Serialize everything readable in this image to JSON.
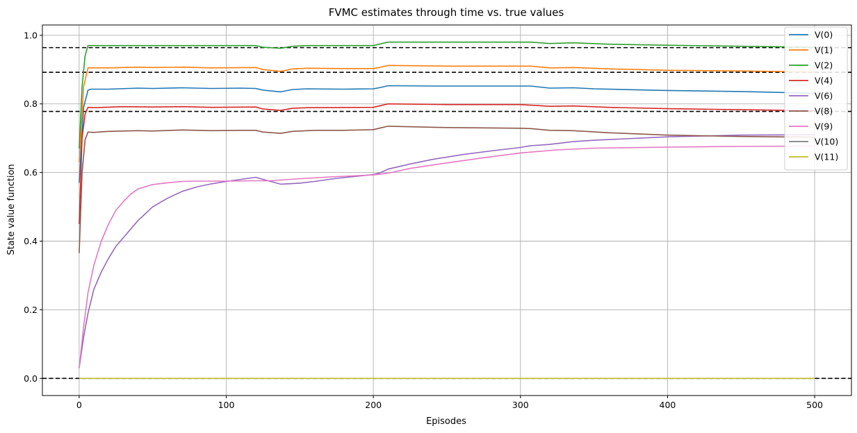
{
  "chart_data": {
    "type": "line",
    "title": "FVMC estimates through time vs. true values",
    "xlabel": "Episodes",
    "ylabel": "State value function",
    "xlim": [
      -25,
      525
    ],
    "ylim": [
      -0.05,
      1.03
    ],
    "xticks": [
      0,
      100,
      200,
      300,
      400,
      500
    ],
    "xtick_labels": [
      "0",
      "100",
      "200",
      "300",
      "400",
      "500"
    ],
    "yticks": [
      0.0,
      0.2,
      0.4,
      0.6,
      0.8,
      1.0
    ],
    "ytick_labels": [
      "0.0",
      "0.2",
      "0.4",
      "0.6",
      "0.8",
      "1.0"
    ],
    "grid": true,
    "legend_position": "top-right",
    "true_values": [
      0.964,
      0.892,
      0.778,
      0.0
    ],
    "series": [
      {
        "name": "V(0)",
        "color": "#1f77b4",
        "points": [
          [
            0,
            0.57
          ],
          [
            3,
            0.79
          ],
          [
            6,
            0.84
          ],
          [
            8,
            0.843
          ],
          [
            20,
            0.843
          ],
          [
            40,
            0.846
          ],
          [
            50,
            0.845
          ],
          [
            70,
            0.847
          ],
          [
            90,
            0.845
          ],
          [
            110,
            0.846
          ],
          [
            120,
            0.845
          ],
          [
            125,
            0.84
          ],
          [
            137,
            0.835
          ],
          [
            145,
            0.842
          ],
          [
            155,
            0.844
          ],
          [
            180,
            0.843
          ],
          [
            200,
            0.844
          ],
          [
            205,
            0.848
          ],
          [
            210,
            0.853
          ],
          [
            240,
            0.852
          ],
          [
            300,
            0.852
          ],
          [
            307,
            0.852
          ],
          [
            320,
            0.846
          ],
          [
            336,
            0.847
          ],
          [
            350,
            0.844
          ],
          [
            400,
            0.839
          ],
          [
            450,
            0.836
          ],
          [
            500,
            0.831
          ]
        ]
      },
      {
        "name": "V(1)",
        "color": "#ff7f0e",
        "points": [
          [
            0,
            0.63
          ],
          [
            3,
            0.85
          ],
          [
            6,
            0.905
          ],
          [
            10,
            0.905
          ],
          [
            20,
            0.905
          ],
          [
            40,
            0.907
          ],
          [
            50,
            0.906
          ],
          [
            70,
            0.907
          ],
          [
            90,
            0.905
          ],
          [
            120,
            0.906
          ],
          [
            125,
            0.9
          ],
          [
            137,
            0.895
          ],
          [
            145,
            0.902
          ],
          [
            155,
            0.904
          ],
          [
            180,
            0.903
          ],
          [
            200,
            0.903
          ],
          [
            205,
            0.907
          ],
          [
            210,
            0.912
          ],
          [
            250,
            0.91
          ],
          [
            307,
            0.91
          ],
          [
            320,
            0.905
          ],
          [
            336,
            0.906
          ],
          [
            360,
            0.902
          ],
          [
            400,
            0.898
          ],
          [
            450,
            0.896
          ],
          [
            500,
            0.893
          ]
        ]
      },
      {
        "name": "V(2)",
        "color": "#2ca02c",
        "points": [
          [
            0,
            0.67
          ],
          [
            2,
            0.85
          ],
          [
            4,
            0.94
          ],
          [
            6,
            0.97
          ],
          [
            20,
            0.97
          ],
          [
            120,
            0.97
          ],
          [
            125,
            0.965
          ],
          [
            137,
            0.962
          ],
          [
            145,
            0.968
          ],
          [
            155,
            0.97
          ],
          [
            200,
            0.97
          ],
          [
            210,
            0.98
          ],
          [
            250,
            0.98
          ],
          [
            307,
            0.98
          ],
          [
            320,
            0.976
          ],
          [
            336,
            0.978
          ],
          [
            360,
            0.974
          ],
          [
            400,
            0.971
          ],
          [
            450,
            0.968
          ],
          [
            500,
            0.965
          ]
        ]
      },
      {
        "name": "V(4)",
        "color": "#d62728",
        "points": [
          [
            0,
            0.45
          ],
          [
            2,
            0.7
          ],
          [
            4,
            0.77
          ],
          [
            6,
            0.79
          ],
          [
            10,
            0.789
          ],
          [
            30,
            0.792
          ],
          [
            50,
            0.791
          ],
          [
            70,
            0.792
          ],
          [
            90,
            0.79
          ],
          [
            120,
            0.791
          ],
          [
            125,
            0.785
          ],
          [
            137,
            0.781
          ],
          [
            145,
            0.787
          ],
          [
            155,
            0.789
          ],
          [
            200,
            0.79
          ],
          [
            210,
            0.8
          ],
          [
            250,
            0.798
          ],
          [
            300,
            0.798
          ],
          [
            320,
            0.793
          ],
          [
            336,
            0.794
          ],
          [
            360,
            0.79
          ],
          [
            400,
            0.786
          ],
          [
            450,
            0.783
          ],
          [
            500,
            0.78
          ]
        ]
      },
      {
        "name": "V(6)",
        "color": "#9467bd",
        "points": [
          [
            0,
            0.03
          ],
          [
            3,
            0.12
          ],
          [
            6,
            0.19
          ],
          [
            10,
            0.26
          ],
          [
            15,
            0.31
          ],
          [
            20,
            0.35
          ],
          [
            25,
            0.385
          ],
          [
            30,
            0.41
          ],
          [
            35,
            0.435
          ],
          [
            40,
            0.46
          ],
          [
            45,
            0.48
          ],
          [
            50,
            0.5
          ],
          [
            60,
            0.525
          ],
          [
            70,
            0.545
          ],
          [
            80,
            0.558
          ],
          [
            90,
            0.567
          ],
          [
            100,
            0.574
          ],
          [
            110,
            0.58
          ],
          [
            120,
            0.586
          ],
          [
            125,
            0.58
          ],
          [
            137,
            0.566
          ],
          [
            150,
            0.569
          ],
          [
            160,
            0.574
          ],
          [
            175,
            0.583
          ],
          [
            200,
            0.594
          ],
          [
            205,
            0.6
          ],
          [
            210,
            0.61
          ],
          [
            225,
            0.625
          ],
          [
            240,
            0.638
          ],
          [
            260,
            0.652
          ],
          [
            280,
            0.663
          ],
          [
            300,
            0.673
          ],
          [
            307,
            0.678
          ],
          [
            320,
            0.682
          ],
          [
            336,
            0.69
          ],
          [
            350,
            0.694
          ],
          [
            400,
            0.704
          ],
          [
            450,
            0.709
          ],
          [
            500,
            0.71
          ]
        ]
      },
      {
        "name": "V(8)",
        "color": "#8c564b",
        "points": [
          [
            0,
            0.365
          ],
          [
            2,
            0.6
          ],
          [
            4,
            0.695
          ],
          [
            6,
            0.718
          ],
          [
            10,
            0.717
          ],
          [
            20,
            0.72
          ],
          [
            40,
            0.722
          ],
          [
            50,
            0.721
          ],
          [
            70,
            0.724
          ],
          [
            90,
            0.722
          ],
          [
            110,
            0.723
          ],
          [
            120,
            0.723
          ],
          [
            125,
            0.718
          ],
          [
            137,
            0.714
          ],
          [
            145,
            0.72
          ],
          [
            160,
            0.723
          ],
          [
            180,
            0.723
          ],
          [
            200,
            0.725
          ],
          [
            205,
            0.73
          ],
          [
            210,
            0.735
          ],
          [
            250,
            0.731
          ],
          [
            300,
            0.729
          ],
          [
            307,
            0.728
          ],
          [
            320,
            0.723
          ],
          [
            336,
            0.722
          ],
          [
            360,
            0.716
          ],
          [
            400,
            0.709
          ],
          [
            450,
            0.705
          ],
          [
            500,
            0.703
          ]
        ]
      },
      {
        "name": "V(9)",
        "color": "#e377c2",
        "points": [
          [
            0,
            0.03
          ],
          [
            3,
            0.15
          ],
          [
            6,
            0.25
          ],
          [
            10,
            0.33
          ],
          [
            15,
            0.4
          ],
          [
            20,
            0.45
          ],
          [
            25,
            0.49
          ],
          [
            30,
            0.515
          ],
          [
            35,
            0.537
          ],
          [
            40,
            0.552
          ],
          [
            50,
            0.565
          ],
          [
            60,
            0.57
          ],
          [
            70,
            0.574
          ],
          [
            80,
            0.575
          ],
          [
            100,
            0.575
          ],
          [
            120,
            0.576
          ],
          [
            130,
            0.576
          ],
          [
            150,
            0.582
          ],
          [
            175,
            0.588
          ],
          [
            200,
            0.593
          ],
          [
            210,
            0.598
          ],
          [
            225,
            0.612
          ],
          [
            250,
            0.628
          ],
          [
            275,
            0.643
          ],
          [
            300,
            0.657
          ],
          [
            325,
            0.666
          ],
          [
            350,
            0.671
          ],
          [
            400,
            0.674
          ],
          [
            450,
            0.676
          ],
          [
            500,
            0.677
          ]
        ]
      },
      {
        "name": "V(10)",
        "color": "#7f7f7f",
        "points": []
      },
      {
        "name": "V(11)",
        "color": "#bcbd22",
        "points": [
          [
            0,
            0.0
          ],
          [
            500,
            0.0
          ]
        ]
      }
    ]
  }
}
